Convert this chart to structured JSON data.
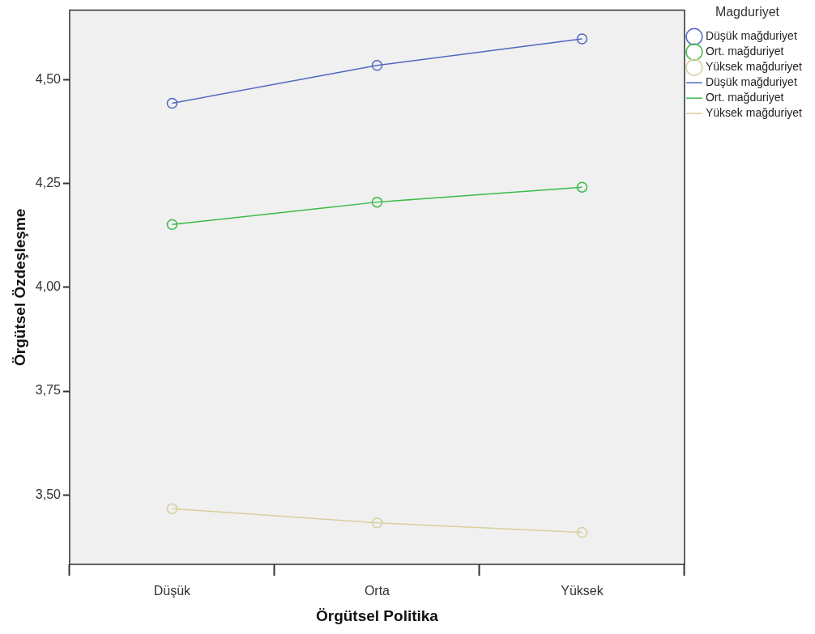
{
  "chart_data": {
    "type": "scatter",
    "xlabel": "Örgütsel Politika",
    "ylabel": "Örgütsel Özdeşleşme",
    "legend_title": "Magduriyet",
    "legend": "top right",
    "grid": false,
    "marker": "circle",
    "categories": [
      "Düşük",
      "Orta",
      "Yüksek"
    ],
    "ylim": [
      3.333,
      4.667
    ],
    "yticks": [
      {
        "value": 3.5,
        "label": "3,50"
      },
      {
        "value": 3.75,
        "label": "3,75"
      },
      {
        "value": 4,
        "label": "4,00"
      },
      {
        "value": 4.25,
        "label": "4,25"
      },
      {
        "value": 4.5,
        "label": "4,50"
      }
    ],
    "series": [
      {
        "name": "Düşük mağduriyet",
        "color": "#5068c0",
        "values": [
          4.443,
          4.534,
          4.598
        ]
      },
      {
        "name": "Ort. mağduriyet",
        "color": "#3cba4a",
        "values": [
          4.151,
          4.205,
          4.241
        ]
      },
      {
        "name": "Yüksek mağduriyet",
        "color": "#d8cf9c",
        "values": [
          3.467,
          3.433,
          3.41
        ]
      },
      {
        "name": "Düşük mağduriyet",
        "type": "line",
        "marker": "none",
        "line_style": "solid",
        "color": "#5068c0",
        "values": [
          4.443,
          4.534,
          4.598
        ]
      },
      {
        "name": "Ort. mağduriyet",
        "type": "line",
        "marker": "none",
        "line_style": "solid",
        "color": "#3cba4a",
        "values": [
          4.151,
          4.205,
          4.241
        ]
      },
      {
        "name": "Yüksek mağduriyet",
        "type": "line",
        "marker": "none",
        "line_style": "solid",
        "color": "#d8cf9c",
        "values": [
          3.467,
          3.433,
          3.41
        ]
      }
    ]
  }
}
